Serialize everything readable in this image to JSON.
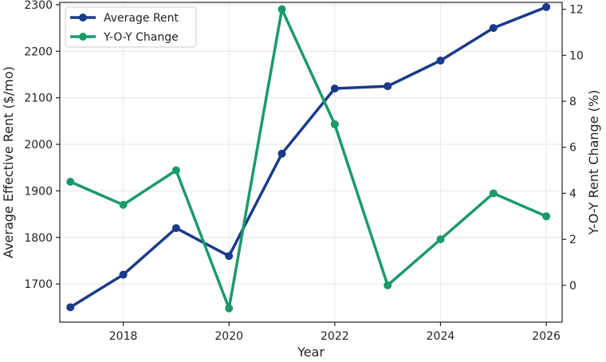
{
  "chart_data": {
    "type": "line",
    "x": [
      2017,
      2018,
      2019,
      2020,
      2021,
      2022,
      2023,
      2024,
      2025,
      2026
    ],
    "xlabel": "Year",
    "xlim": [
      2016.8,
      2026.3
    ],
    "xticks": [
      2018,
      2020,
      2022,
      2024,
      2026
    ],
    "ylabel": "Average Effective Rent ($/mo)",
    "ylim": [
      1618,
      2305
    ],
    "yticks": [
      1700,
      1800,
      1900,
      2000,
      2100,
      2200,
      2300
    ],
    "y2label": "Y-O-Y Rent Change (%)",
    "y2lim": [
      -1.6,
      12.3
    ],
    "y2ticks": [
      0,
      2,
      4,
      6,
      8,
      10,
      12
    ],
    "grid": true,
    "legend": "top-left",
    "series": [
      {
        "name": "Average Rent",
        "axis": "left",
        "color": "#1a3a8a",
        "values": [
          1650,
          1720,
          1820,
          1760,
          1980,
          2120,
          2125,
          2180,
          2250,
          2295
        ]
      },
      {
        "name": "Y-O-Y Change",
        "axis": "right",
        "color": "#1a9a6a",
        "values": [
          4.5,
          3.5,
          5.0,
          -1.0,
          12.0,
          7.0,
          0.0,
          2.0,
          4.0,
          3.0
        ]
      }
    ]
  }
}
